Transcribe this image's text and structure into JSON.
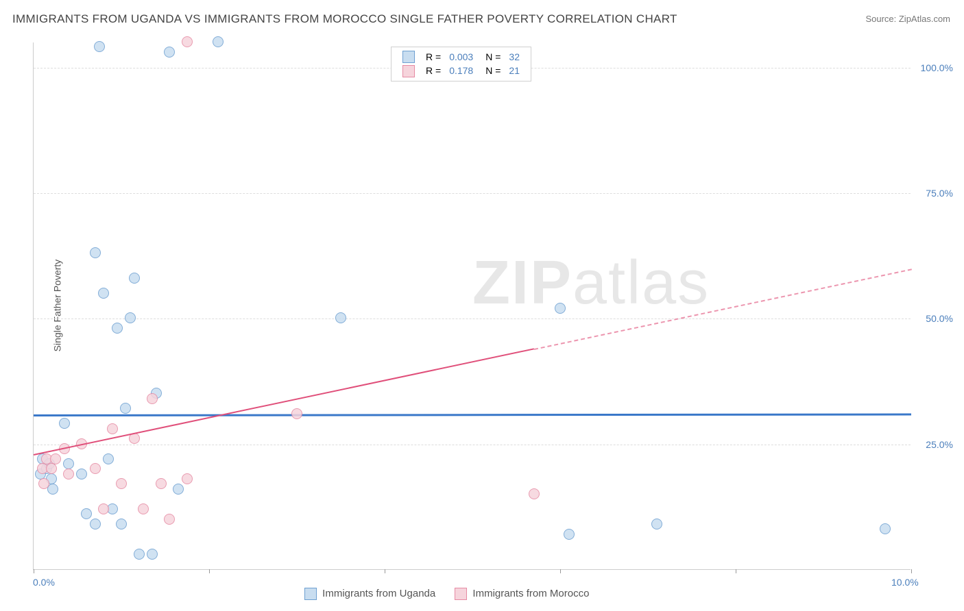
{
  "title": "IMMIGRANTS FROM UGANDA VS IMMIGRANTS FROM MOROCCO SINGLE FATHER POVERTY CORRELATION CHART",
  "source": "Source: ZipAtlas.com",
  "yAxisLabel": "Single Father Poverty",
  "watermark": {
    "bold": "ZIP",
    "light": "atlas"
  },
  "chart": {
    "type": "scatter",
    "background_color": "#ffffff",
    "grid_color": "#dddddd",
    "axis_color": "#cccccc",
    "tick_color": "#999999",
    "label_color": "#4a7ebb",
    "title_color": "#444444",
    "title_fontsize": 17,
    "label_fontsize": 14,
    "xlim": [
      0,
      10
    ],
    "ylim": [
      0,
      105
    ],
    "yticks": [
      25,
      50,
      75,
      100
    ],
    "ytick_labels": [
      "25.0%",
      "50.0%",
      "75.0%",
      "100.0%"
    ],
    "xticks": [
      0,
      2,
      4,
      6,
      8,
      10
    ],
    "xtick_labels_shown": {
      "0": "0.0%",
      "10": "10.0%"
    },
    "watermark_color": "#cccccc",
    "watermark_fontsize": 90,
    "point_radius": 8,
    "point_border_width": 1.5
  },
  "series": [
    {
      "name": "Immigrants from Uganda",
      "fill": "#c8ddf0",
      "stroke": "#6d9fd1",
      "r_value": "0.003",
      "n_value": "32",
      "trend": {
        "x0": 0,
        "y0": 31,
        "x1": 10,
        "y1": 31.2,
        "solid_until_x": 10,
        "color": "#3a78c9",
        "width": 3
      },
      "points": [
        [
          0.08,
          19
        ],
        [
          0.1,
          22
        ],
        [
          0.15,
          20
        ],
        [
          0.18,
          21
        ],
        [
          0.2,
          18
        ],
        [
          0.22,
          16
        ],
        [
          0.35,
          29
        ],
        [
          0.4,
          21
        ],
        [
          0.55,
          19
        ],
        [
          0.6,
          11
        ],
        [
          0.7,
          63
        ],
        [
          0.7,
          9
        ],
        [
          0.75,
          104
        ],
        [
          0.8,
          55
        ],
        [
          0.85,
          22
        ],
        [
          0.9,
          12
        ],
        [
          0.95,
          48
        ],
        [
          1.0,
          9
        ],
        [
          1.05,
          32
        ],
        [
          1.1,
          50
        ],
        [
          1.15,
          58
        ],
        [
          1.2,
          3
        ],
        [
          1.35,
          3
        ],
        [
          1.4,
          35
        ],
        [
          1.55,
          103
        ],
        [
          1.65,
          16
        ],
        [
          2.1,
          105
        ],
        [
          3.5,
          50
        ],
        [
          6.0,
          52
        ],
        [
          6.1,
          7
        ],
        [
          7.1,
          9
        ],
        [
          9.7,
          8
        ]
      ]
    },
    {
      "name": "Immigrants from Morocco",
      "fill": "#f6d4dc",
      "stroke": "#e68aa3",
      "r_value": "0.178",
      "n_value": "21",
      "trend": {
        "x0": 0,
        "y0": 23,
        "x1": 10,
        "y1": 60,
        "solid_until_x": 5.7,
        "color": "#e04f7a",
        "width": 2.5
      },
      "points": [
        [
          0.1,
          20
        ],
        [
          0.12,
          17
        ],
        [
          0.15,
          22
        ],
        [
          0.2,
          20
        ],
        [
          0.25,
          22
        ],
        [
          0.35,
          24
        ],
        [
          0.4,
          19
        ],
        [
          0.55,
          25
        ],
        [
          0.7,
          20
        ],
        [
          0.8,
          12
        ],
        [
          0.9,
          28
        ],
        [
          1.0,
          17
        ],
        [
          1.15,
          26
        ],
        [
          1.25,
          12
        ],
        [
          1.35,
          34
        ],
        [
          1.45,
          17
        ],
        [
          1.55,
          10
        ],
        [
          1.75,
          105
        ],
        [
          1.75,
          18
        ],
        [
          3.0,
          31
        ],
        [
          5.7,
          15
        ]
      ]
    }
  ],
  "legend_top": {
    "r_label": "R =",
    "n_label": "N =",
    "value_color": "#4a7ebb"
  },
  "legend_bottom": {
    "items": [
      "Immigrants from Uganda",
      "Immigrants from Morocco"
    ]
  }
}
